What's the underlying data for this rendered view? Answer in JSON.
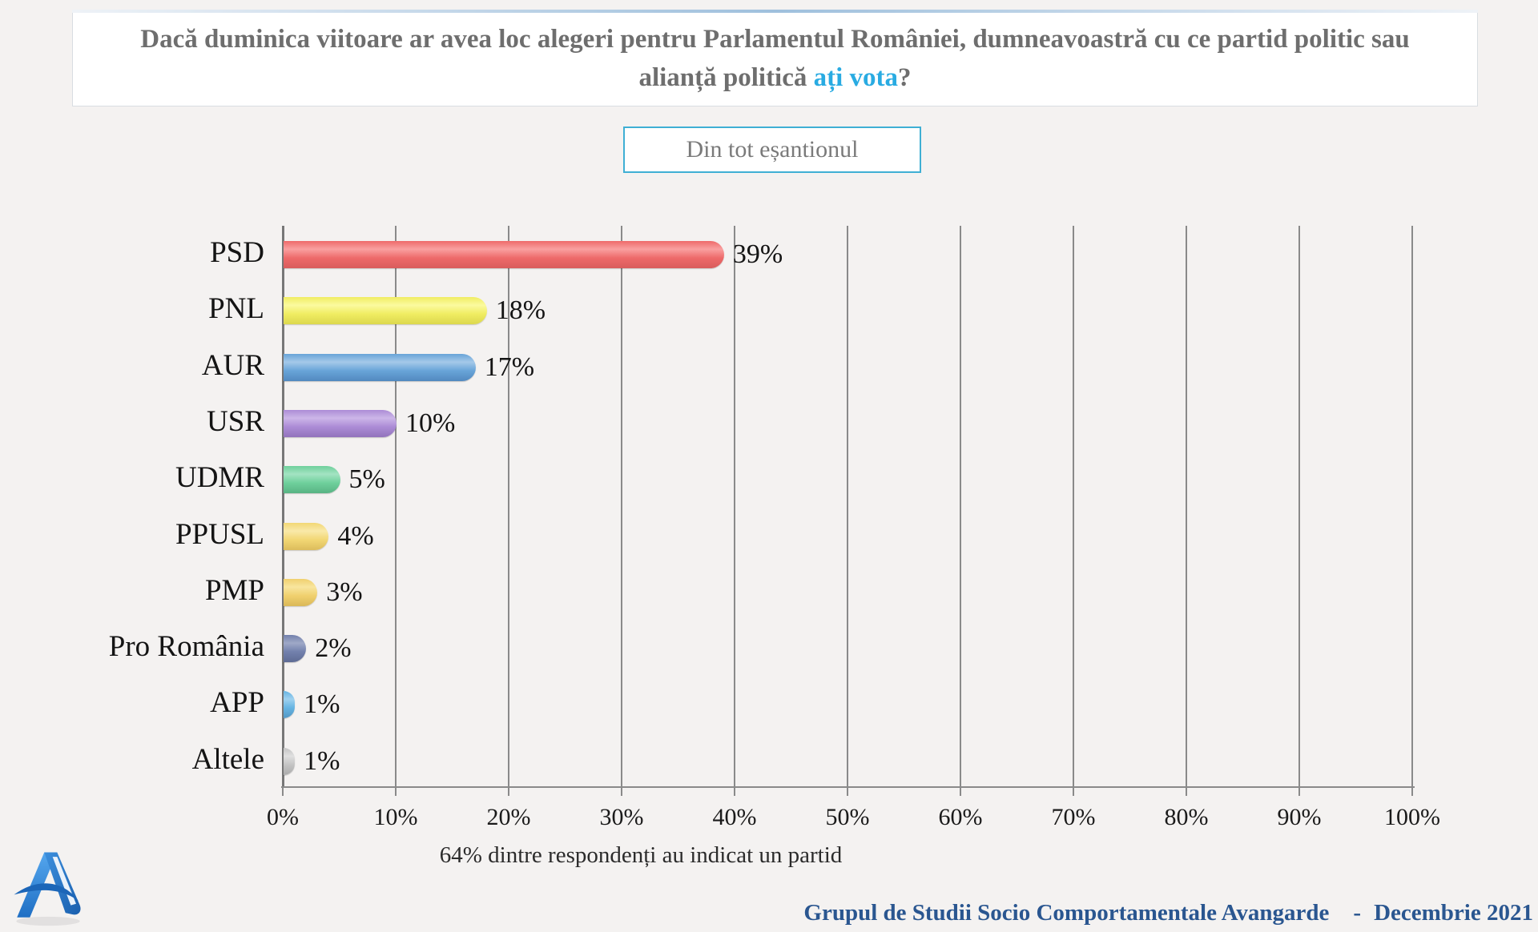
{
  "page": {
    "background": "#f4f2f1"
  },
  "title": {
    "text_before": "Dacă duminica viitoare ar avea loc alegeri pentru Parlamentul României, dumneavoastră cu ce partid politic sau alianță politică ",
    "highlight": "ați vota",
    "text_after": "?",
    "highlight_color": "#29abe2"
  },
  "sample_box": {
    "label": "Din tot eșantionul",
    "border_color": "#3fafd4"
  },
  "chart_data": {
    "type": "bar",
    "orientation": "horizontal",
    "title": "",
    "xlabel": "",
    "ylabel": "",
    "xlim": [
      0,
      100
    ],
    "grid": true,
    "x_ticks": [
      "0%",
      "10%",
      "20%",
      "30%",
      "40%",
      "50%",
      "60%",
      "70%",
      "80%",
      "90%",
      "100%"
    ],
    "categories": [
      "PSD",
      "PNL",
      "AUR",
      "USR",
      "UDMR",
      "PPUSL",
      "PMP",
      "Pro România",
      "APP",
      "Altele"
    ],
    "values": [
      39,
      18,
      17,
      10,
      5,
      4,
      3,
      2,
      1,
      1
    ],
    "value_labels": [
      "39%",
      "18%",
      "17%",
      "10%",
      "5%",
      "4%",
      "3%",
      "2%",
      "1%",
      "1%"
    ],
    "bar_colors": [
      {
        "base": "#ee6a6a",
        "light": "#f9a0a0",
        "dark": "#d95c5c"
      },
      {
        "base": "#f0ed62",
        "light": "#fbfa9f",
        "dark": "#dcd84e"
      },
      {
        "base": "#68a4d8",
        "light": "#a5c9e9",
        "dark": "#5289bf"
      },
      {
        "base": "#ac8cd6",
        "light": "#ccb6e8",
        "dark": "#9273bc"
      },
      {
        "base": "#6fd09c",
        "light": "#a3e3c2",
        "dark": "#58b383"
      },
      {
        "base": "#f2d774",
        "light": "#f9e9a9",
        "dark": "#dcbc5c"
      },
      {
        "base": "#f0d06e",
        "light": "#f8e59e",
        "dark": "#dab858"
      },
      {
        "base": "#7280ac",
        "light": "#9fa9c7",
        "dark": "#5e6b94"
      },
      {
        "base": "#66b4e2",
        "light": "#9fd1ef",
        "dark": "#5297c4"
      },
      {
        "base": "#c4c4c4",
        "light": "#e0e0e0",
        "dark": "#ababab"
      }
    ],
    "caption": "64% dintre respondenți au indicat un partid"
  },
  "footer": {
    "source": "Grupul de Studii Socio Comportamentale Avangarde",
    "separator": "-",
    "date": "Decembrie 2021",
    "color": "#2a5690"
  },
  "logo": {
    "name": "avangarde-logo"
  }
}
